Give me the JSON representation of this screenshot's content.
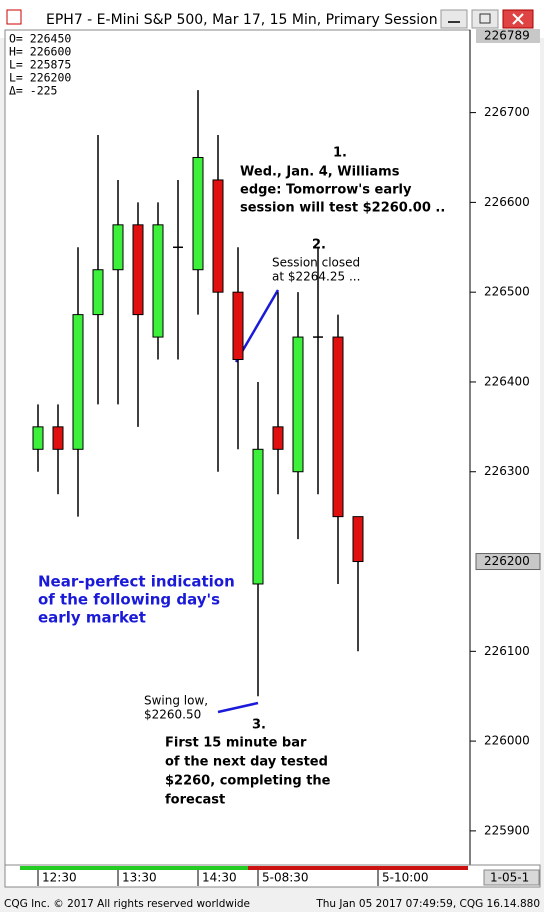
{
  "chart_data": {
    "type": "candlestick",
    "title": "EPH7 - E-Mini S&P 500, Mar 17, 15 Min, Primary Session",
    "info_lines": [
      "O= 226450",
      "H= 226600",
      "L= 225875",
      "L= 226200",
      "Δ=     -225"
    ],
    "x": [
      0,
      1,
      2,
      3,
      4,
      5,
      6,
      7,
      8,
      9,
      10,
      11,
      12,
      13,
      14,
      15,
      16
    ],
    "open": [
      226325,
      226350,
      226325,
      226475,
      226525,
      226575,
      226450,
      226550,
      226525,
      226625,
      226500,
      226175,
      226350,
      226300,
      226450,
      226450,
      226250
    ],
    "high": [
      226375,
      226375,
      226550,
      226675,
      226625,
      226600,
      226600,
      226625,
      226725,
      226675,
      226550,
      226400,
      226500,
      226500,
      226550,
      226475,
      226250
    ],
    "low": [
      226300,
      226275,
      226250,
      226375,
      226375,
      226350,
      226425,
      226425,
      226475,
      226300,
      226325,
      226050,
      226275,
      226225,
      226275,
      226175,
      226100
    ],
    "close": [
      226350,
      226325,
      226475,
      226525,
      226575,
      226475,
      226575,
      226550,
      226650,
      226500,
      226425,
      226325,
      226325,
      226450,
      226450,
      226250,
      226200
    ],
    "up_color": "#3cf03c",
    "down_color": "#e01010",
    "ylim": [
      225862,
      226792
    ],
    "yticks": [
      225900,
      226000,
      226100,
      226300,
      226400,
      226500,
      226600,
      226700
    ],
    "axis_high": 226789,
    "last_price": 226200,
    "xlim": [
      -1.65,
      21.6
    ],
    "xticks": [
      {
        "value": 0,
        "label": "12:30"
      },
      {
        "value": 4,
        "label": "13:30"
      },
      {
        "value": 8,
        "label": "14:30"
      },
      {
        "value": 11,
        "label": "5-08:30"
      },
      {
        "value": 17,
        "label": "5-10:00"
      }
    ],
    "date_box": "1-05-1",
    "annotations": {
      "note1_number": "1.",
      "note1_lines": [
        "Wed., Jan. 4, Williams",
        "edge: Tomorrow's early",
        "session will test $2260.00 .."
      ],
      "note2_number": "2.",
      "note2_lines": [
        "Session closed",
        "at $2264.25 ..."
      ],
      "blue_lines": [
        "Near-perfect indication",
        "of the following day's",
        "early market"
      ],
      "swing_lines": [
        "Swing low,",
        "$2260.50"
      ],
      "note3_number": "3.",
      "note3_lines": [
        "First 15 minute bar",
        "of the next day tested",
        "$2260, completing the",
        "forecast"
      ]
    },
    "footer_left": "CQG Inc. © 2017 All rights reserved worldwide",
    "footer_right": "Thu Jan 05 2017 07:49:59, CQG 16.14.880"
  }
}
